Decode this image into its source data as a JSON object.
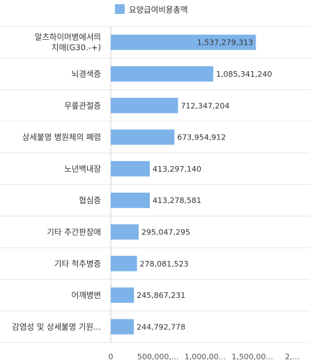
{
  "chart_data": {
    "type": "bar",
    "orientation": "horizontal",
    "legend": {
      "position": "top"
    },
    "categories": [
      [
        "알츠하이머병에서의",
        "치매(G30.-+)"
      ],
      [
        "뇌경색증"
      ],
      [
        "무릎관절증"
      ],
      [
        "상세불명 병원체의 폐렴"
      ],
      [
        "노년백내장"
      ],
      [
        "협심증"
      ],
      [
        "기타 추간판장애"
      ],
      [
        "기타 척추병증"
      ],
      [
        "어깨병변"
      ],
      [
        "감염성 및 상세불명 기원..."
      ]
    ],
    "series": [
      {
        "name": "요양급여비용총액",
        "color": "#7eb3e9",
        "values": [
          1537279313,
          1085341240,
          712347204,
          673954912,
          413297140,
          413278581,
          295047295,
          278081523,
          245867231,
          244792778
        ],
        "value_labels": [
          "1,537,279,313",
          "1,085,341,240",
          "712,347,204",
          "673,954,912",
          "413,297,140",
          "413,278,581",
          "295,047,295",
          "278,081,523",
          "245,867,231",
          "244,792,778"
        ]
      }
    ],
    "xlim": [
      0,
      2000000000
    ],
    "x_ticks": [
      0,
      500000000,
      1000000000,
      1500000000,
      2000000000
    ],
    "x_tick_labels": [
      "0",
      "500,000,...",
      "1,000,00...",
      "1,500,00...",
      "2,..."
    ],
    "grid": {
      "horizontal": true,
      "vertical": false
    },
    "xlabel": "",
    "ylabel": ""
  }
}
